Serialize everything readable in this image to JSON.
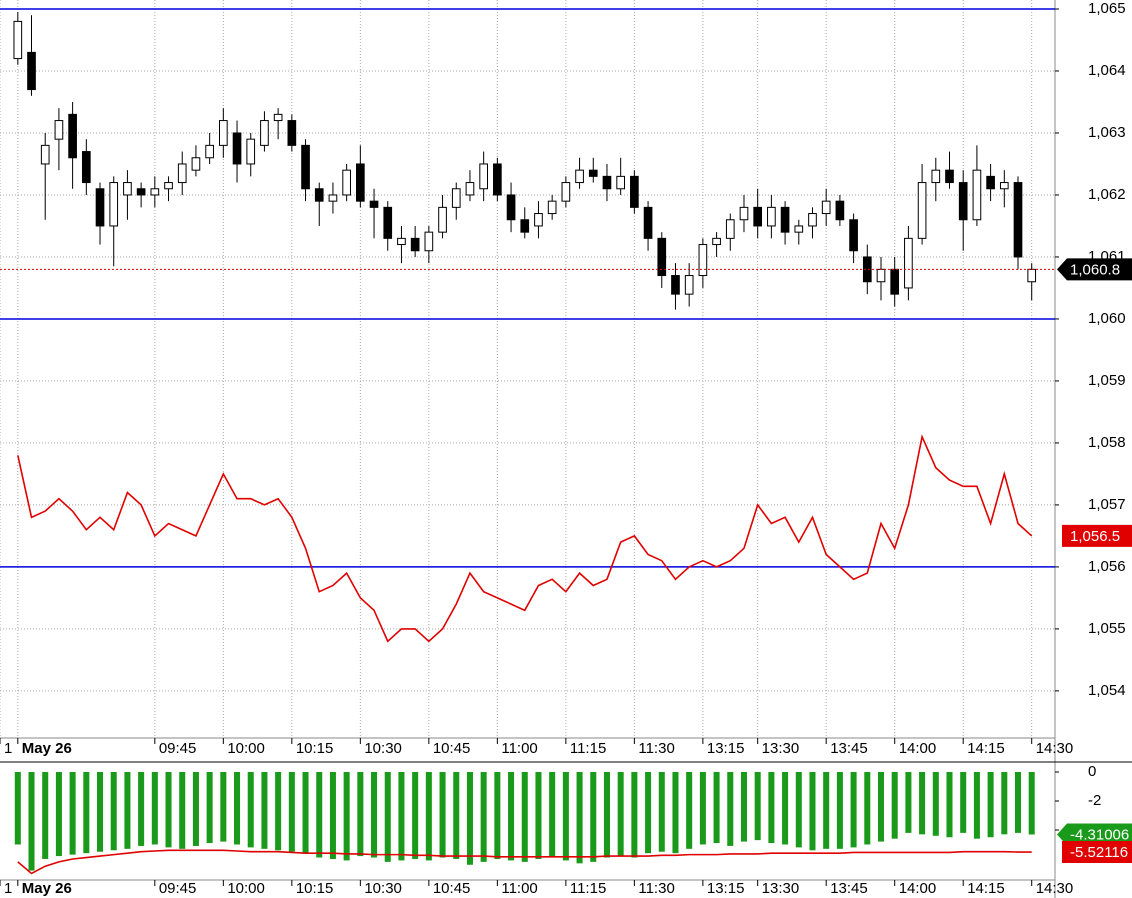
{
  "chart_data": [
    {
      "type": "candlestick",
      "xlim": [
        -1.3,
        75.7
      ],
      "xticks": [
        {
          "value": -1.3,
          "label": "1"
        },
        {
          "value": 0,
          "label": "May 26"
        },
        {
          "value": 10,
          "label": "09:45"
        },
        {
          "value": 15,
          "label": "10:00"
        },
        {
          "value": 20,
          "label": "10:15"
        },
        {
          "value": 25,
          "label": "10:30"
        },
        {
          "value": 30,
          "label": "10:45"
        },
        {
          "value": 35,
          "label": "11:00"
        },
        {
          "value": 40,
          "label": "11:15"
        },
        {
          "value": 45,
          "label": "11:30"
        },
        {
          "value": 50,
          "label": "13:15"
        },
        {
          "value": 54,
          "label": "13:30"
        },
        {
          "value": 59,
          "label": "13:45"
        },
        {
          "value": 64,
          "label": "14:00"
        },
        {
          "value": 69,
          "label": "14:15"
        },
        {
          "value": 74,
          "label": "14:30"
        }
      ],
      "ylim": [
        1053.24,
        1065.145
      ],
      "yticks": [
        {
          "value": 1054,
          "label": "1,054"
        },
        {
          "value": 1055,
          "label": "1,055"
        },
        {
          "value": 1056,
          "label": "1,056"
        },
        {
          "value": 1057,
          "label": "1,057"
        },
        {
          "value": 1058,
          "label": "1,058"
        },
        {
          "value": 1059,
          "label": "1,059"
        },
        {
          "value": 1060,
          "label": "1,060"
        },
        {
          "value": 1061,
          "label": "1,061"
        },
        {
          "value": 1062,
          "label": "1,062"
        },
        {
          "value": 1063,
          "label": "1,063"
        },
        {
          "value": 1064,
          "label": "1,064"
        },
        {
          "value": 1065,
          "label": "1,065"
        }
      ],
      "grid": true,
      "hlines": [
        1065,
        1060,
        1056
      ],
      "hline_color": "#0000e0",
      "candles": {
        "color": "#000000",
        "open": [
          1064.2,
          1064.3,
          1062.5,
          1062.9,
          1063.3,
          1062.7,
          1062.1,
          1061.5,
          1062.0,
          1062.1,
          1062.0,
          1062.1,
          1062.2,
          1062.4,
          1062.6,
          1062.8,
          1063.0,
          1062.5,
          1062.8,
          1063.2,
          1063.2,
          1062.8,
          1062.1,
          1061.9,
          1062.0,
          1062.5,
          1061.9,
          1061.8,
          1061.2,
          1061.3,
          1061.1,
          1061.4,
          1061.8,
          1062.0,
          1062.1,
          1062.5,
          1062.0,
          1061.6,
          1061.5,
          1061.7,
          1061.9,
          1062.2,
          1062.4,
          1062.3,
          1062.1,
          1062.3,
          1061.8,
          1061.3,
          1060.7,
          1060.4,
          1060.7,
          1061.2,
          1061.3,
          1061.6,
          1061.8,
          1061.5,
          1061.8,
          1061.4,
          1061.5,
          1061.7,
          1061.9,
          1061.6,
          1061.0,
          1060.6,
          1060.8,
          1060.5,
          1061.3,
          1062.2,
          1062.4,
          1062.2,
          1061.6,
          1062.3,
          1062.1,
          1062.2,
          1060.6
        ],
        "high": [
          1064.95,
          1064.9,
          1063.0,
          1063.4,
          1063.5,
          1062.9,
          1062.2,
          1062.3,
          1062.4,
          1062.2,
          1062.3,
          1062.3,
          1062.7,
          1062.8,
          1063.0,
          1063.4,
          1063.2,
          1063.0,
          1063.35,
          1063.4,
          1063.3,
          1062.9,
          1062.2,
          1062.2,
          1062.5,
          1062.8,
          1062.1,
          1061.9,
          1061.5,
          1061.5,
          1061.5,
          1062.0,
          1062.2,
          1062.4,
          1062.7,
          1062.6,
          1062.2,
          1061.8,
          1061.9,
          1062.0,
          1062.3,
          1062.6,
          1062.6,
          1062.5,
          1062.6,
          1062.4,
          1061.9,
          1061.4,
          1060.9,
          1060.9,
          1061.3,
          1061.4,
          1061.7,
          1062.0,
          1062.1,
          1062.0,
          1061.9,
          1061.6,
          1061.8,
          1062.1,
          1062.0,
          1061.7,
          1061.2,
          1061.0,
          1061.0,
          1061.5,
          1062.5,
          1062.6,
          1062.7,
          1062.4,
          1062.8,
          1062.5,
          1062.4,
          1062.3,
          1060.9
        ],
        "low": [
          1064.1,
          1063.6,
          1061.6,
          1062.4,
          1062.1,
          1062.0,
          1061.2,
          1060.85,
          1061.6,
          1061.8,
          1061.8,
          1061.9,
          1062.0,
          1062.3,
          1062.5,
          1062.6,
          1062.2,
          1062.3,
          1062.7,
          1062.9,
          1062.7,
          1061.9,
          1061.5,
          1061.7,
          1061.9,
          1061.8,
          1061.3,
          1061.1,
          1060.9,
          1061.0,
          1060.9,
          1061.3,
          1061.6,
          1061.9,
          1061.9,
          1061.9,
          1061.4,
          1061.3,
          1061.3,
          1061.6,
          1061.8,
          1062.1,
          1062.2,
          1061.9,
          1062.0,
          1061.7,
          1061.1,
          1060.5,
          1060.15,
          1060.2,
          1060.5,
          1061.0,
          1061.1,
          1061.4,
          1061.3,
          1061.3,
          1061.2,
          1061.2,
          1061.3,
          1061.5,
          1061.5,
          1060.9,
          1060.4,
          1060.3,
          1060.2,
          1060.3,
          1061.2,
          1061.9,
          1062.1,
          1061.1,
          1061.5,
          1061.9,
          1061.8,
          1060.8,
          1060.3
        ],
        "close": [
          1064.8,
          1063.7,
          1062.8,
          1063.2,
          1062.6,
          1062.2,
          1061.5,
          1062.2,
          1062.2,
          1062.0,
          1062.1,
          1062.2,
          1062.5,
          1062.6,
          1062.8,
          1063.2,
          1062.5,
          1062.9,
          1063.2,
          1063.3,
          1062.8,
          1062.1,
          1061.9,
          1062.0,
          1062.4,
          1061.9,
          1061.8,
          1061.3,
          1061.3,
          1061.1,
          1061.4,
          1061.8,
          1062.1,
          1062.2,
          1062.5,
          1062.0,
          1061.6,
          1061.4,
          1061.7,
          1061.9,
          1062.2,
          1062.4,
          1062.3,
          1062.1,
          1062.3,
          1061.8,
          1061.3,
          1060.7,
          1060.4,
          1060.7,
          1061.2,
          1061.3,
          1061.6,
          1061.8,
          1061.5,
          1061.8,
          1061.4,
          1061.5,
          1061.7,
          1061.9,
          1061.6,
          1061.1,
          1060.6,
          1060.8,
          1060.4,
          1061.3,
          1062.2,
          1062.4,
          1062.2,
          1061.6,
          1062.4,
          1062.1,
          1062.2,
          1061.0,
          1060.8
        ],
        "value_labels": [
          null,
          null,
          null,
          null,
          null,
          null,
          null,
          null,
          null,
          null,
          null,
          null,
          null,
          null,
          null,
          null,
          null,
          null,
          null,
          null,
          null,
          null,
          null,
          null,
          null,
          null,
          null,
          null,
          null,
          null,
          null,
          null,
          null,
          null,
          null,
          null,
          null,
          null,
          null,
          null,
          null,
          null,
          null,
          null,
          null,
          null,
          null,
          null,
          null,
          null,
          null,
          null,
          null,
          null,
          null,
          null,
          null,
          null,
          null,
          null,
          null,
          null,
          null,
          null,
          null,
          null,
          null,
          null,
          null,
          null,
          null,
          null,
          null,
          null,
          "1,060.8"
        ]
      },
      "lines": [
        {
          "color": "#e00000",
          "values": [
            1057.8,
            1056.8,
            1056.9,
            1057.1,
            1056.9,
            1056.6,
            1056.8,
            1056.6,
            1057.2,
            1057.0,
            1056.5,
            1056.7,
            1056.6,
            1056.5,
            1057.0,
            1057.5,
            1057.1,
            1057.1,
            1057.0,
            1057.1,
            1056.8,
            1056.3,
            1055.6,
            1055.7,
            1055.9,
            1055.5,
            1055.3,
            1054.8,
            1055.0,
            1055.0,
            1054.8,
            1055.0,
            1055.4,
            1055.9,
            1055.6,
            1055.5,
            1055.4,
            1055.3,
            1055.7,
            1055.8,
            1055.6,
            1055.9,
            1055.7,
            1055.8,
            1056.4,
            1056.5,
            1056.2,
            1056.1,
            1055.8,
            1056.0,
            1056.1,
            1056.0,
            1056.1,
            1056.3,
            1057.0,
            1056.7,
            1056.8,
            1056.4,
            1056.8,
            1056.2,
            1056.0,
            1055.8,
            1055.9,
            1056.7,
            1056.3,
            1057.0,
            1058.1,
            1057.6,
            1057.4,
            1057.3,
            1057.3,
            1056.7,
            1057.5,
            1056.7,
            1056.5
          ],
          "value_labels": [
            null,
            null,
            null,
            null,
            null,
            null,
            null,
            null,
            null,
            null,
            null,
            null,
            null,
            null,
            null,
            null,
            null,
            null,
            null,
            null,
            null,
            null,
            null,
            null,
            null,
            null,
            null,
            null,
            null,
            null,
            null,
            null,
            null,
            null,
            null,
            null,
            null,
            null,
            null,
            null,
            null,
            null,
            null,
            null,
            null,
            null,
            null,
            null,
            null,
            null,
            null,
            null,
            null,
            null,
            null,
            null,
            null,
            null,
            null,
            null,
            null,
            null,
            null,
            null,
            null,
            null,
            null,
            null,
            null,
            null,
            null,
            null,
            null,
            null,
            "1,056.5"
          ]
        }
      ]
    },
    {
      "type": "bar",
      "xlim": [
        -1.3,
        75.7
      ],
      "xticks": [
        {
          "value": -1.3,
          "label": "1"
        },
        {
          "value": 0,
          "label": "May 26"
        },
        {
          "value": 10,
          "label": "09:45"
        },
        {
          "value": 15,
          "label": "10:00"
        },
        {
          "value": 20,
          "label": "10:15"
        },
        {
          "value": 25,
          "label": "10:30"
        },
        {
          "value": 30,
          "label": "10:45"
        },
        {
          "value": 35,
          "label": "11:00"
        },
        {
          "value": 40,
          "label": "11:15"
        },
        {
          "value": 45,
          "label": "11:30"
        },
        {
          "value": 50,
          "label": "13:15"
        },
        {
          "value": 54,
          "label": "13:30"
        },
        {
          "value": 59,
          "label": "13:45"
        },
        {
          "value": 64,
          "label": "14:00"
        },
        {
          "value": 69,
          "label": "14:15"
        },
        {
          "value": 74,
          "label": "14:30"
        }
      ],
      "ylim": [
        -7.45,
        0.69
      ],
      "yticks": [
        0,
        -2,
        -4
      ],
      "grid": false,
      "bars": {
        "color": "#1a9a1a",
        "values": [
          -5.0,
          -6.8,
          -6.0,
          -5.8,
          -5.7,
          -5.6,
          -5.5,
          -5.4,
          -5.3,
          -5.1,
          -5.0,
          -5.2,
          -5.3,
          -5.1,
          -4.9,
          -4.8,
          -5.0,
          -5.2,
          -5.3,
          -5.4,
          -5.5,
          -5.6,
          -5.9,
          -6.0,
          -6.1,
          -5.8,
          -5.9,
          -6.2,
          -6.1,
          -6.0,
          -6.1,
          -5.9,
          -6.0,
          -6.4,
          -6.2,
          -6.0,
          -6.1,
          -6.2,
          -6.0,
          -5.9,
          -6.1,
          -6.3,
          -6.2,
          -5.9,
          -5.8,
          -5.9,
          -5.6,
          -5.5,
          -5.6,
          -5.3,
          -5.0,
          -4.9,
          -5.1,
          -4.8,
          -4.7,
          -4.9,
          -5.0,
          -5.2,
          -5.4,
          -5.3,
          -5.3,
          -5.2,
          -5.0,
          -4.8,
          -4.6,
          -4.2,
          -4.3,
          -4.4,
          -4.5,
          -4.2,
          -4.6,
          -4.5,
          -4.3,
          -4.2,
          -4.31006
        ],
        "value_labels": [
          null,
          null,
          null,
          null,
          null,
          null,
          null,
          null,
          null,
          null,
          null,
          null,
          null,
          null,
          null,
          null,
          null,
          null,
          null,
          null,
          null,
          null,
          null,
          null,
          null,
          null,
          null,
          null,
          null,
          null,
          null,
          null,
          null,
          null,
          null,
          null,
          null,
          null,
          null,
          null,
          null,
          null,
          null,
          null,
          null,
          null,
          null,
          null,
          null,
          null,
          null,
          null,
          null,
          null,
          null,
          null,
          null,
          null,
          null,
          null,
          null,
          null,
          null,
          null,
          null,
          null,
          null,
          null,
          null,
          null,
          null,
          null,
          null,
          null,
          "-4.31006"
        ]
      },
      "lines": [
        {
          "color": "#e00000",
          "values": [
            -6.2,
            -7.0,
            -6.5,
            -6.2,
            -6.0,
            -5.9,
            -5.8,
            -5.7,
            -5.6,
            -5.5,
            -5.45,
            -5.4,
            -5.4,
            -5.4,
            -5.4,
            -5.4,
            -5.45,
            -5.5,
            -5.5,
            -5.5,
            -5.55,
            -5.6,
            -5.6,
            -5.6,
            -5.65,
            -5.65,
            -5.7,
            -5.7,
            -5.7,
            -5.75,
            -5.75,
            -5.8,
            -5.8,
            -5.8,
            -5.8,
            -5.85,
            -5.85,
            -5.85,
            -5.85,
            -5.85,
            -5.85,
            -5.85,
            -5.85,
            -5.8,
            -5.8,
            -5.8,
            -5.8,
            -5.75,
            -5.75,
            -5.7,
            -5.7,
            -5.7,
            -5.65,
            -5.65,
            -5.65,
            -5.6,
            -5.6,
            -5.6,
            -5.6,
            -5.6,
            -5.6,
            -5.55,
            -5.55,
            -5.55,
            -5.55,
            -5.55,
            -5.55,
            -5.55,
            -5.55,
            -5.5,
            -5.5,
            -5.5,
            -5.5,
            -5.52,
            -5.52116
          ],
          "value_labels": [
            null,
            null,
            null,
            null,
            null,
            null,
            null,
            null,
            null,
            null,
            null,
            null,
            null,
            null,
            null,
            null,
            null,
            null,
            null,
            null,
            null,
            null,
            null,
            null,
            null,
            null,
            null,
            null,
            null,
            null,
            null,
            null,
            null,
            null,
            null,
            null,
            null,
            null,
            null,
            null,
            null,
            null,
            null,
            null,
            null,
            null,
            null,
            null,
            null,
            null,
            null,
            null,
            null,
            null,
            null,
            null,
            null,
            null,
            null,
            null,
            null,
            null,
            null,
            null,
            null,
            null,
            null,
            null,
            null,
            null,
            null,
            null,
            null,
            null,
            "-5.52116"
          ]
        }
      ]
    }
  ]
}
